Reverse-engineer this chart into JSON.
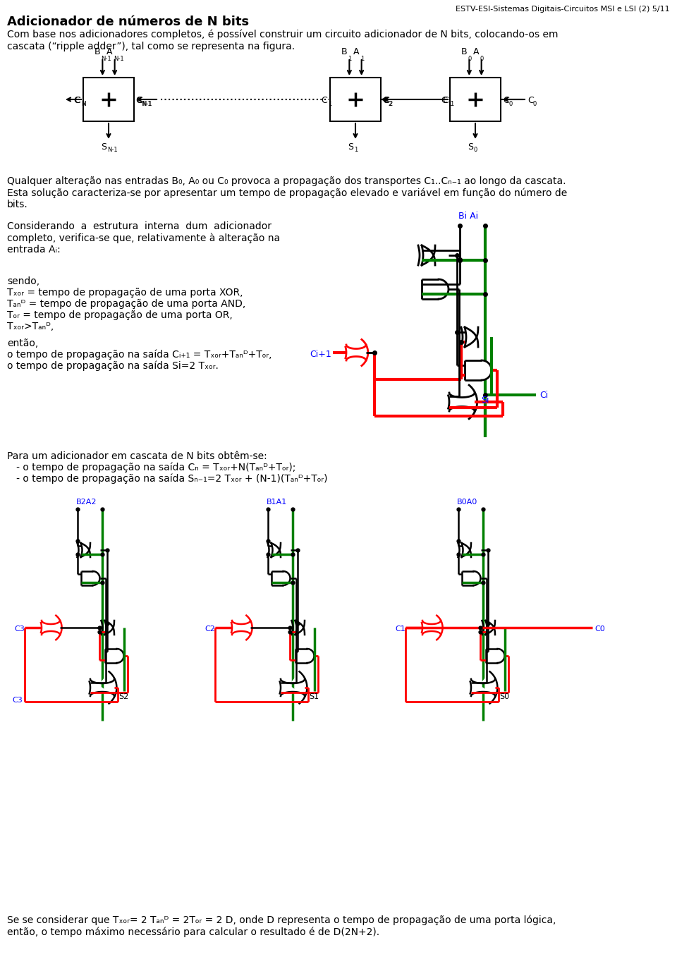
{
  "page_header": "ESTV-ESI-Sistemas Digitais-Circuitos MSI e LSI (2) 5/11",
  "title": "Adicionador de números de N bits",
  "para1": "Com base nos adicionadores completos, é possível construir um circuito adicionador de N bits, colocando-os em\ncascata (“ripple adder”), tal como se representa na figura.",
  "para2": "Qualquer alteração nas entradas B₀, A₀ ou C₀ provoca a propagação dos transportes C₁..Cₙ₋₁ ao longo da cascata.\nEsta solução caracteriza-se por apresentar um tempo de propagação elevado e variável em função do número de\nbits.",
  "para3": "Considerando  a  estrutura  interna  dum  adicionador\ncompleto, verifica-se que, relativamente à alteração na\nentrada Aᵢ:",
  "para4a": "sendo,",
  "para4b": "Tₓₒᵣ = tempo de propagação de uma porta XOR,",
  "para4c": "Tₐₙᴰ = tempo de propagação de uma porta AND,",
  "para4d": "Tₒᵣ = tempo de propagação de uma porta OR,",
  "para4e": "Tₓₒᵣ>Tₐₙᴰ,",
  "para5a": "então,",
  "para5b": "o tempo de propagação na saída Cᵢ₊₁ = Tₓₒᵣ+Tₐₙᴰ+Tₒᵣ,",
  "para5c": "o tempo de propagação na saída Si=2 Tₓₒᵣ.",
  "para6a": "Para um adicionador em cascata de N bits obtêm-se:",
  "para6b": "   - o tempo de propagação na saída Cₙ = Tₓₒᵣ+N(Tₐₙᴰ+Tₒᵣ);",
  "para6c": "   - o tempo de propagação na saída Sₙ₋₁=2 Tₓₒᵣ + (N-1)(Tₐₙᴰ+Tₒᵣ)",
  "para7": "Se se considerar que Tₓₒᵣ= 2 Tₐₙᴰ = 2Tₒᵣ = 2 D, onde D representa o tempo de propagação de uma porta lógica,\nentão, o tempo máximo necessário para calcular o resultado é de D(2N+2).",
  "bg_color": "#ffffff"
}
